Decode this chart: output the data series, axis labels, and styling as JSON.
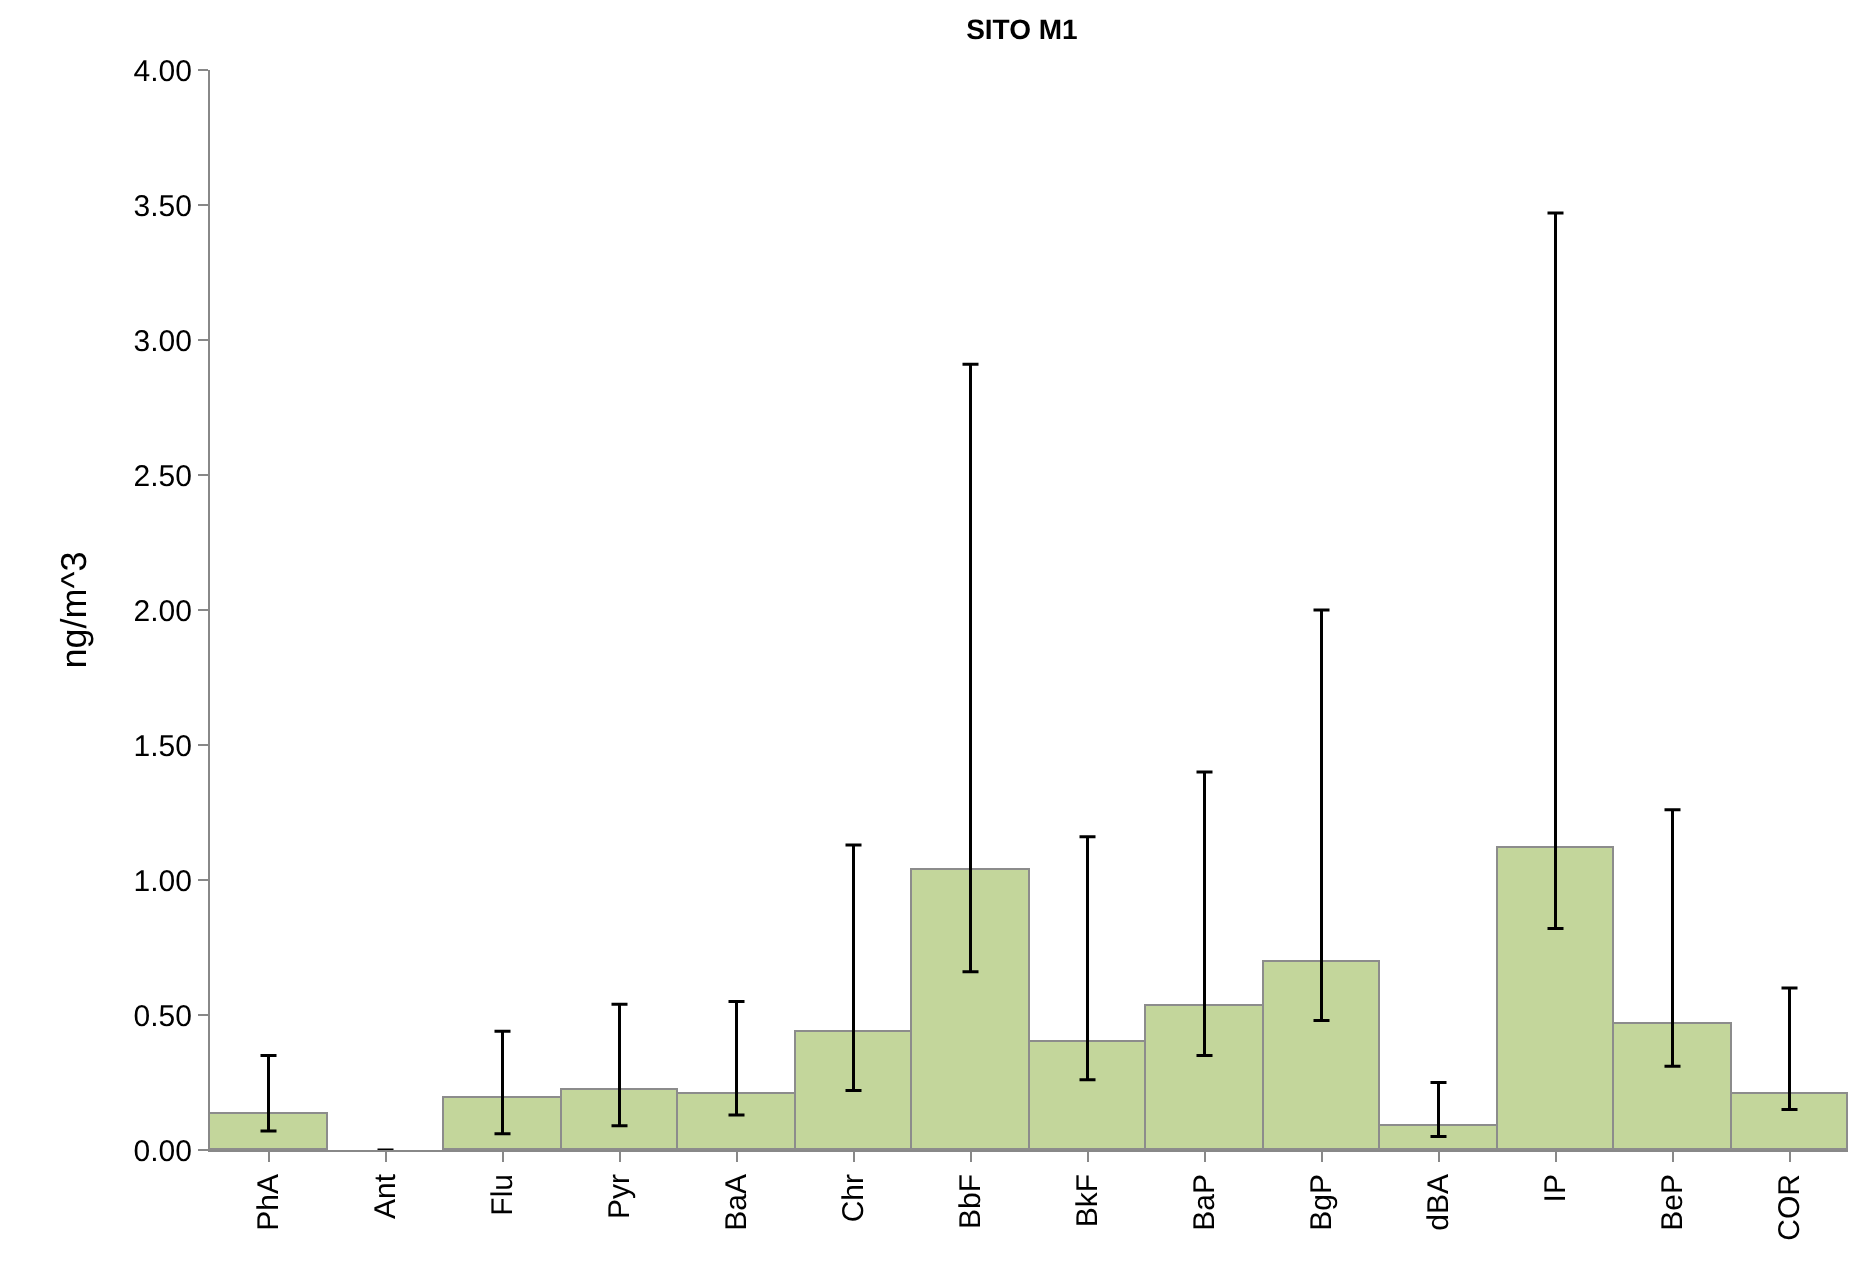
{
  "chart_data": {
    "type": "bar",
    "title": "SITO M1",
    "ylabel": "ng/m^3",
    "categories": [
      "PhA",
      "Ant",
      "Flu",
      "Pyr",
      "BaA",
      "Chr",
      "BbF",
      "BkF",
      "BaP",
      "BgP",
      "dBA",
      "IP",
      "BeP",
      "COR"
    ],
    "series": [
      {
        "color": "#c3d69b",
        "values": [
          0.13,
          0,
          0.19,
          0.22,
          0.21,
          0.44,
          1.04,
          0.4,
          0.53,
          0.7,
          0.09,
          1.12,
          0.47,
          0.21
        ],
        "errors": [
          [
            0.07,
            0.35
          ],
          null,
          [
            0.06,
            0.44
          ],
          [
            0.09,
            0.54
          ],
          [
            0.13,
            0.55
          ],
          [
            0.22,
            1.13
          ],
          [
            0.66,
            2.91
          ],
          [
            0.26,
            1.16
          ],
          [
            0.35,
            1.4
          ],
          [
            0.48,
            2.0
          ],
          [
            0.05,
            0.25
          ],
          [
            0.82,
            3.47
          ],
          [
            0.31,
            1.26
          ],
          [
            0.15,
            0.6
          ]
        ]
      }
    ],
    "ylim": [
      0,
      4
    ],
    "yticks": [
      {
        "value": 0,
        "label": "0.00"
      },
      {
        "value": 0.5,
        "label": "0.50"
      },
      {
        "value": 1,
        "label": "1.00"
      },
      {
        "value": 1.5,
        "label": "1.50"
      },
      {
        "value": 2,
        "label": "2.00"
      },
      {
        "value": 2.5,
        "label": "2.50"
      },
      {
        "value": 3,
        "label": "3.00"
      },
      {
        "value": 3.5,
        "label": "3.50"
      },
      {
        "value": 4,
        "label": "4.00"
      }
    ],
    "grid": false
  }
}
